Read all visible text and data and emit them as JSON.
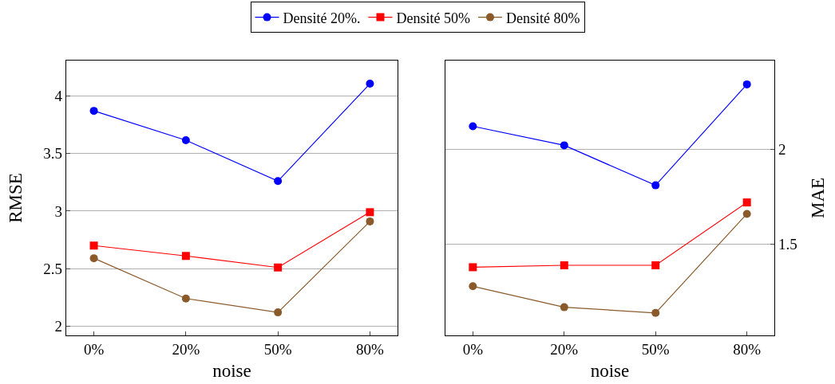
{
  "chart_data": [
    {
      "type": "line",
      "categories": [
        "0%",
        "20%",
        "50%",
        "80%"
      ],
      "xlabel": "noise",
      "ylabel": "RMSE",
      "ylim": [
        1.92,
        4.307
      ],
      "yticks": [
        2,
        2.5,
        3,
        3.5,
        4
      ],
      "grid": "y",
      "legend": "top",
      "line_style": "solid",
      "series": [
        {
          "name": "Densité 20%.",
          "color": "#0000ff",
          "marker": "circle",
          "values": [
            3.87,
            3.615,
            3.26,
            4.106
          ]
        },
        {
          "name": "Densité 50%",
          "color": "#ff0000",
          "marker": "square",
          "values": [
            2.7,
            2.61,
            2.51,
            2.99
          ]
        },
        {
          "name": "Densité 80%",
          "color": "#8b5a2b",
          "marker": "circle",
          "values": [
            2.59,
            2.24,
            2.12,
            2.91
          ]
        }
      ]
    },
    {
      "type": "line",
      "categories": [
        "0%",
        "20%",
        "50%",
        "80%"
      ],
      "xlabel": "noise",
      "y2label": "MAE",
      "y2lim": [
        1.022,
        2.465
      ],
      "y2ticks": [
        1.5,
        2
      ],
      "grid": "y",
      "line_style": "solid",
      "series": [
        {
          "color": "#0000ff",
          "marker": "circle",
          "axis": "y2",
          "values": [
            2.12,
            2.02,
            1.81,
            2.34
          ]
        },
        {
          "color": "#ff0000",
          "marker": "square",
          "axis": "y2",
          "values": [
            1.38,
            1.39,
            1.39,
            1.72
          ]
        },
        {
          "color": "#8b5a2b",
          "marker": "circle",
          "axis": "y2",
          "values": [
            1.28,
            1.17,
            1.14,
            1.66
          ]
        }
      ]
    }
  ]
}
